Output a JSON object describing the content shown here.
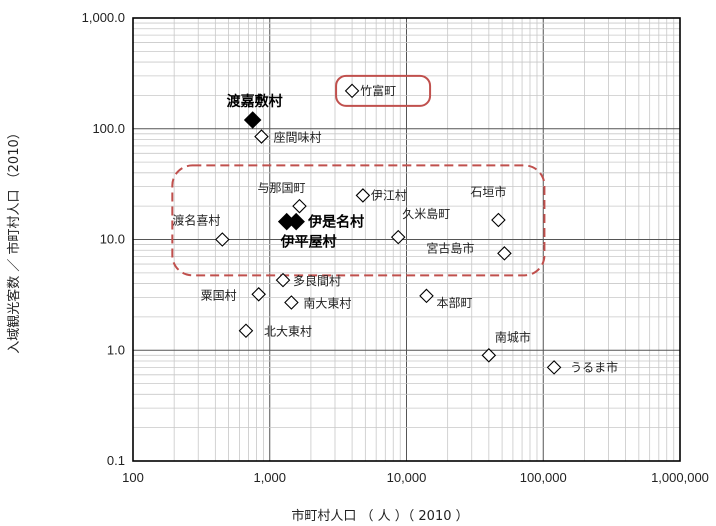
{
  "chart_data": {
    "type": "scatter",
    "xlabel": "市町村人口 （ 人 ）（ 2010 ）",
    "ylabel": "入域観光客数 ／ 市町村人口 （2010）",
    "x_scale": "log",
    "y_scale": "log",
    "xlim": [
      100,
      1000000
    ],
    "ylim": [
      0.1,
      1000
    ],
    "x_tick_labels": [
      "100",
      "1,000",
      "10,000",
      "100,000",
      "1,000,000"
    ],
    "y_tick_labels": [
      "0.1",
      "1.0",
      "10.0",
      "100.0",
      "1,000.0"
    ],
    "grid": true,
    "points": [
      {
        "label": "竹富町",
        "x": 4000,
        "y": 220,
        "highlight": false
      },
      {
        "label": "渡嘉敷村",
        "x": 750,
        "y": 120,
        "highlight": true
      },
      {
        "label": "座間味村",
        "x": 870,
        "y": 85,
        "highlight": false
      },
      {
        "label": "与那国町",
        "x": 1650,
        "y": 20,
        "highlight": false
      },
      {
        "label": "伊江村",
        "x": 4800,
        "y": 25,
        "highlight": false
      },
      {
        "label": "石垣市",
        "x": 47000,
        "y": 15,
        "highlight": false
      },
      {
        "label": "伊是名村",
        "x": 1560,
        "y": 14.5,
        "highlight": true
      },
      {
        "label": "伊平屋村",
        "x": 1330,
        "y": 14.5,
        "highlight": true
      },
      {
        "label": "渡名喜村",
        "x": 450,
        "y": 10,
        "highlight": false
      },
      {
        "label": "久米島町",
        "x": 8700,
        "y": 10.5,
        "highlight": false
      },
      {
        "label": "宮古島市",
        "x": 52000,
        "y": 7.5,
        "highlight": false
      },
      {
        "label": "多良間村",
        "x": 1250,
        "y": 4.3,
        "highlight": false
      },
      {
        "label": "粟国村",
        "x": 830,
        "y": 3.2,
        "highlight": false
      },
      {
        "label": "南大東村",
        "x": 1440,
        "y": 2.7,
        "highlight": false
      },
      {
        "label": "本部町",
        "x": 14000,
        "y": 3.1,
        "highlight": false
      },
      {
        "label": "北大東村",
        "x": 670,
        "y": 1.5,
        "highlight": false
      },
      {
        "label": "南城市",
        "x": 40000,
        "y": 0.9,
        "highlight": false
      },
      {
        "label": "うるま市",
        "x": 120000,
        "y": 0.7,
        "highlight": false
      }
    ],
    "annotations": [
      {
        "shape": "rounded-rect",
        "style": "solid",
        "color": "#c0504d",
        "encloses": [
          "竹富町"
        ]
      },
      {
        "shape": "rounded-rect",
        "style": "dashed",
        "color": "#c0504d",
        "encloses": [
          "与那国町",
          "伊江村",
          "石垣市",
          "伊是名村",
          "伊平屋村",
          "渡名喜村",
          "久米島町",
          "宮古島市"
        ]
      }
    ]
  }
}
